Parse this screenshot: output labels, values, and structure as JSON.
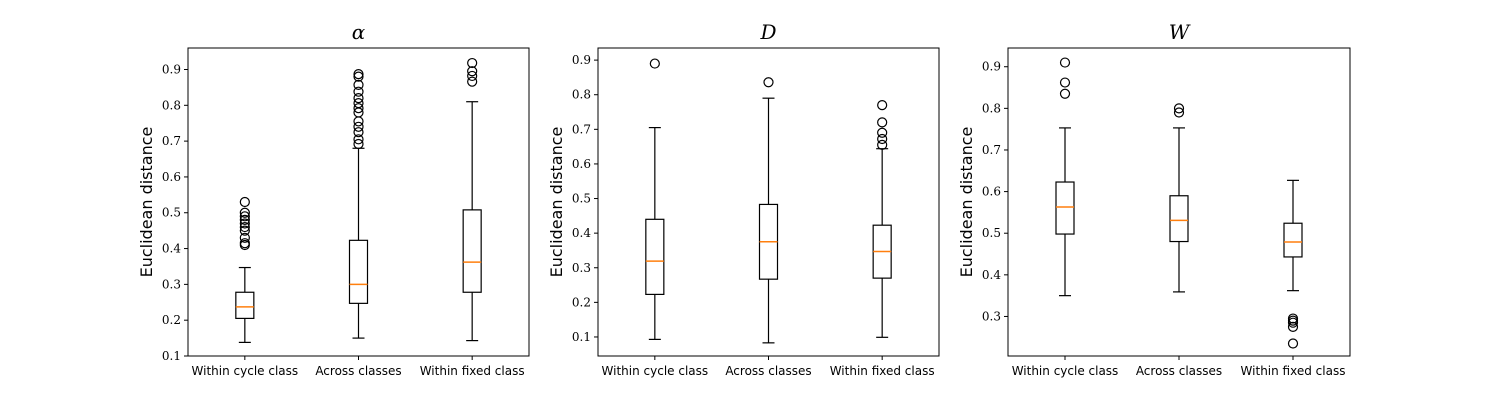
{
  "chart_data": [
    {
      "type": "box",
      "title": "α",
      "ylabel": "Euclidean distance",
      "ylim": [
        0.1,
        0.96
      ],
      "yticks": [
        0.1,
        0.2,
        0.3,
        0.4,
        0.5,
        0.6,
        0.7,
        0.8,
        0.9
      ],
      "categories": [
        "Within cycle class",
        "Across classes",
        "Within fixed class"
      ],
      "boxes": [
        {
          "whisker_low": 0.138,
          "q1": 0.205,
          "median": 0.237,
          "q3": 0.278,
          "whisker_high": 0.347,
          "outliers": [
            0.41,
            0.415,
            0.43,
            0.45,
            0.46,
            0.47,
            0.48,
            0.49,
            0.5,
            0.53
          ]
        },
        {
          "whisker_low": 0.15,
          "q1": 0.247,
          "median": 0.3,
          "q3": 0.423,
          "whisker_high": 0.68,
          "outliers": [
            0.692,
            0.705,
            0.725,
            0.74,
            0.755,
            0.78,
            0.792,
            0.806,
            0.82,
            0.838,
            0.857,
            0.88,
            0.887
          ]
        },
        {
          "whisker_low": 0.143,
          "q1": 0.278,
          "median": 0.362,
          "q3": 0.508,
          "whisker_high": 0.81,
          "outliers": [
            0.866,
            0.882,
            0.895,
            0.918
          ]
        }
      ]
    },
    {
      "type": "box",
      "title": "D",
      "ylabel": "Euclidean distance",
      "ylim": [
        0.045,
        0.935
      ],
      "yticks": [
        0.1,
        0.2,
        0.3,
        0.4,
        0.5,
        0.6,
        0.7,
        0.8,
        0.9
      ],
      "categories": [
        "Within cycle class",
        "Across classes",
        "Within fixed class"
      ],
      "boxes": [
        {
          "whisker_low": 0.093,
          "q1": 0.223,
          "median": 0.319,
          "q3": 0.44,
          "whisker_high": 0.705,
          "outliers": [
            0.89
          ]
        },
        {
          "whisker_low": 0.083,
          "q1": 0.267,
          "median": 0.375,
          "q3": 0.483,
          "whisker_high": 0.79,
          "outliers": [
            0.836
          ]
        },
        {
          "whisker_low": 0.099,
          "q1": 0.27,
          "median": 0.347,
          "q3": 0.423,
          "whisker_high": 0.644,
          "outliers": [
            0.655,
            0.672,
            0.69,
            0.72,
            0.77
          ]
        }
      ]
    },
    {
      "type": "box",
      "title": "W",
      "ylabel": "Euclidean distance",
      "ylim": [
        0.205,
        0.945
      ],
      "yticks": [
        0.3,
        0.4,
        0.5,
        0.6,
        0.7,
        0.8,
        0.9
      ],
      "categories": [
        "Within cycle class",
        "Across classes",
        "Within fixed class"
      ],
      "boxes": [
        {
          "whisker_low": 0.35,
          "q1": 0.498,
          "median": 0.563,
          "q3": 0.623,
          "whisker_high": 0.753,
          "outliers": [
            0.835,
            0.862,
            0.91
          ]
        },
        {
          "whisker_low": 0.359,
          "q1": 0.48,
          "median": 0.531,
          "q3": 0.59,
          "whisker_high": 0.753,
          "outliers": [
            0.79,
            0.8
          ]
        },
        {
          "whisker_low": 0.362,
          "q1": 0.443,
          "median": 0.479,
          "q3": 0.524,
          "whisker_high": 0.627,
          "outliers": [
            0.235,
            0.275,
            0.285,
            0.29,
            0.295
          ]
        }
      ]
    }
  ],
  "colors": {
    "median": "#ff7f0e",
    "box": "#000000",
    "outlier": "#000000"
  }
}
